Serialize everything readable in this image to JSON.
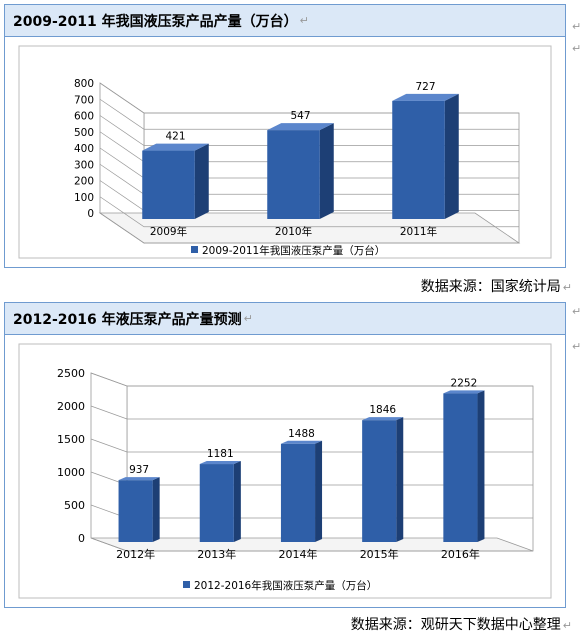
{
  "panels": [
    {
      "title": "2009-2011 年我国液压泵产品产量（万台）",
      "source": "数据来源：国家统计局",
      "chart_data": {
        "type": "bar",
        "title": "",
        "categories": [
          "2009年",
          "2010年",
          "2011年"
        ],
        "series": [
          {
            "name": "2009-2011年我国液压泵产量（万台）",
            "values": [
              421,
              547,
              727
            ]
          }
        ],
        "ylim": [
          0,
          800
        ],
        "yticks": [
          0,
          100,
          200,
          300,
          400,
          500,
          600,
          700,
          800
        ],
        "legend": "bottom",
        "grid": true,
        "color": "#2f5fa8"
      }
    },
    {
      "title": "2012-2016 年液压泵产品产量预测",
      "source": "数据来源：观研天下数据中心整理",
      "chart_data": {
        "type": "bar",
        "title": "",
        "categories": [
          "2012年",
          "2013年",
          "2014年",
          "2015年",
          "2016年"
        ],
        "series": [
          {
            "name": "2012-2016年我国液压泵产量（万台）",
            "values": [
              937,
              1181,
              1488,
              1846,
              2252
            ]
          }
        ],
        "ylim": [
          0,
          2500
        ],
        "yticks": [
          0,
          500,
          1000,
          1500,
          2000,
          2500
        ],
        "legend": "bottom",
        "grid": true,
        "color": "#2f5fa8"
      }
    }
  ],
  "colors": {
    "bar_front": "#2f5fa8",
    "bar_side": "#1d3f75",
    "bar_top": "#5b86cc",
    "header_bg": "#dbe8f7",
    "border": "#6f9bd0"
  },
  "paragraph_mark": "↵"
}
